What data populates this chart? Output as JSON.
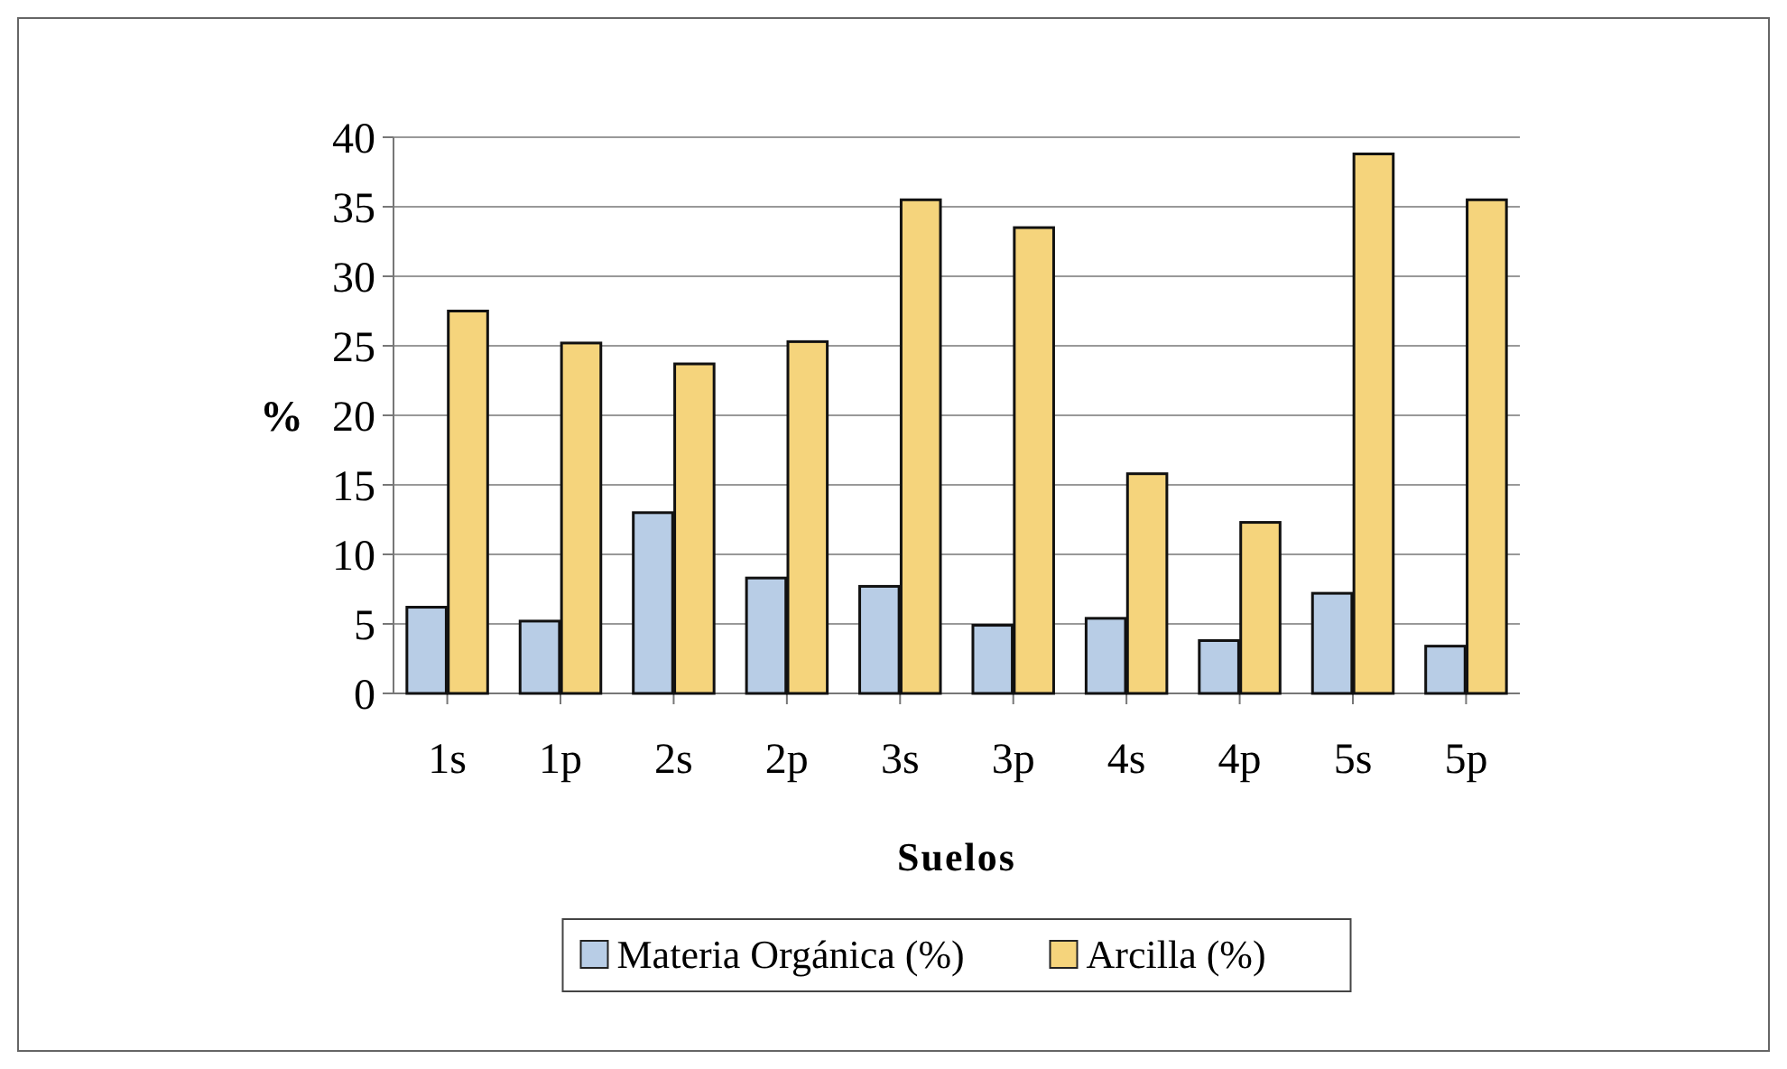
{
  "chart_data": {
    "type": "bar",
    "xlabel": "Suelos",
    "ylabel": "%",
    "categories": [
      "1s",
      "1p",
      "2s",
      "2p",
      "3s",
      "3p",
      "4s",
      "4p",
      "5s",
      "5p"
    ],
    "series": [
      {
        "name": "Materia Orgánica (%)",
        "color": "#b8cde6",
        "values": [
          6.2,
          5.2,
          13,
          8.3,
          7.7,
          4.9,
          5.4,
          3.8,
          7.2,
          3.4
        ]
      },
      {
        "name": "Arcilla (%)",
        "color": "#f5d47c",
        "values": [
          27.5,
          25.2,
          23.7,
          25.3,
          35.5,
          33.5,
          15.8,
          12.3,
          38.8,
          35.5
        ]
      }
    ],
    "ylim": [
      0,
      40
    ],
    "yticks": [
      0,
      5,
      10,
      15,
      20,
      25,
      30,
      35,
      40
    ],
    "grid": "y",
    "legend": "bottom"
  }
}
